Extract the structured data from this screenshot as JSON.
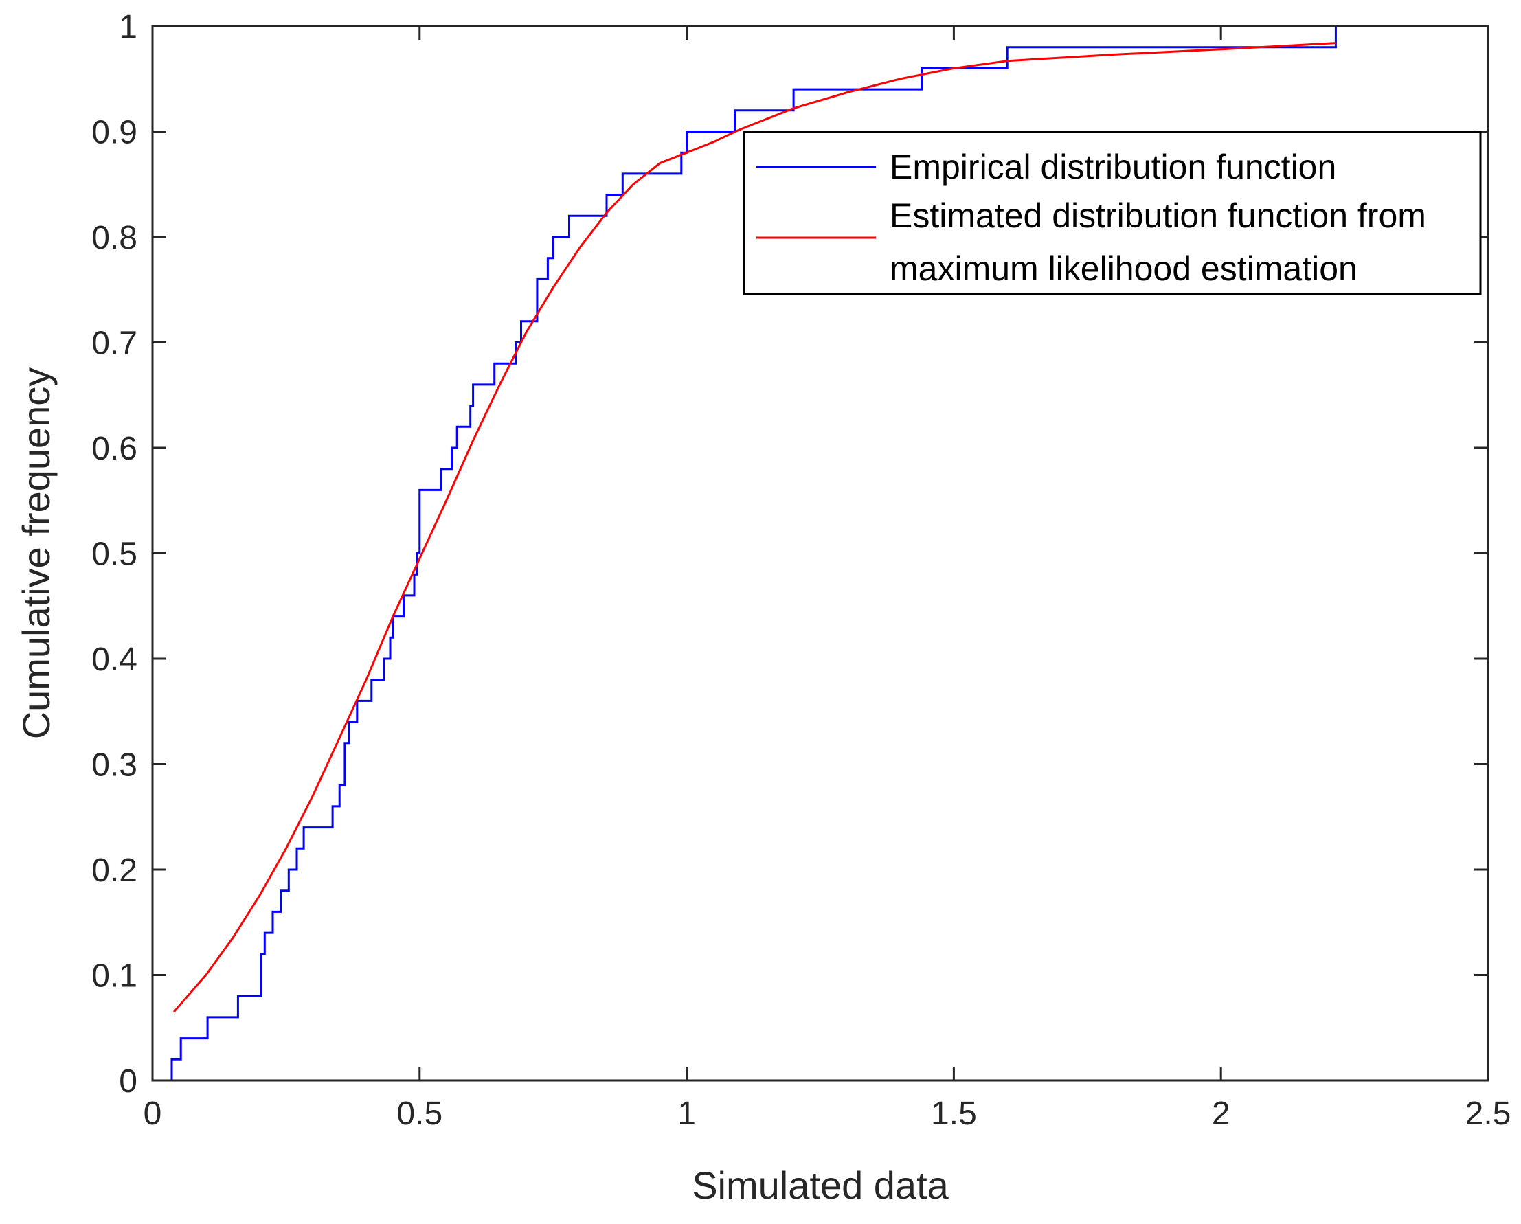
{
  "colors": {
    "empirical": "#0000ff",
    "fitted": "#ff0000",
    "axis": "#262626",
    "legend_border": "#000000"
  },
  "chart_data": {
    "type": "line",
    "title": "",
    "xlabel": "Simulated data",
    "ylabel": "Cumulative frequency",
    "xlim": [
      0,
      2.5
    ],
    "ylim": [
      0,
      1
    ],
    "xticks": [
      0,
      0.5,
      1,
      1.5,
      2,
      2.5
    ],
    "xtick_labels": [
      "0",
      "0.5",
      "1",
      "1.5",
      "2",
      "2.5"
    ],
    "yticks": [
      0,
      0.1,
      0.2,
      0.3,
      0.4,
      0.5,
      0.6,
      0.7,
      0.8,
      0.9,
      1
    ],
    "ytick_labels": [
      "0",
      "0.1",
      "0.2",
      "0.3",
      "0.4",
      "0.5",
      "0.6",
      "0.7",
      "0.8",
      "0.9",
      "1"
    ],
    "grid": false,
    "box": true,
    "legend": {
      "position": "top-right",
      "entries": [
        {
          "series": "empirical",
          "lines": [
            "Empirical distribution function"
          ]
        },
        {
          "series": "fitted",
          "lines": [
            "Estimated distribution function from",
            "maximum likelihood estimation"
          ]
        }
      ]
    },
    "series": [
      {
        "name": "Empirical distribution function",
        "id": "empirical",
        "style": "stairs",
        "x": [
          0.036,
          0.053,
          0.103,
          0.16,
          0.203,
          0.21,
          0.225,
          0.24,
          0.255,
          0.27,
          0.283,
          0.337,
          0.35,
          0.36,
          0.368,
          0.383,
          0.41,
          0.433,
          0.445,
          0.45,
          0.47,
          0.49,
          0.495,
          0.5,
          0.54,
          0.56,
          0.57,
          0.595,
          0.6,
          0.64,
          0.68,
          0.69,
          0.72,
          0.74,
          0.75,
          0.78,
          0.85,
          0.88,
          0.99,
          1.0,
          1.09,
          1.2,
          1.44,
          1.6,
          2.215
        ],
        "y": [
          0.02,
          0.04,
          0.06,
          0.08,
          0.12,
          0.14,
          0.16,
          0.18,
          0.2,
          0.22,
          0.24,
          0.26,
          0.28,
          0.32,
          0.34,
          0.36,
          0.38,
          0.4,
          0.42,
          0.44,
          0.46,
          0.48,
          0.5,
          0.56,
          0.58,
          0.6,
          0.62,
          0.64,
          0.66,
          0.68,
          0.7,
          0.72,
          0.76,
          0.78,
          0.8,
          0.82,
          0.84,
          0.86,
          0.88,
          0.9,
          0.92,
          0.94,
          0.96,
          0.98,
          1.0
        ]
      },
      {
        "name": "Estimated distribution function from maximum likelihood estimation",
        "id": "fitted",
        "style": "line",
        "x": [
          0.04,
          0.1,
          0.15,
          0.2,
          0.25,
          0.3,
          0.35,
          0.4,
          0.45,
          0.5,
          0.55,
          0.6,
          0.65,
          0.7,
          0.75,
          0.8,
          0.85,
          0.9,
          0.95,
          1.0,
          1.05,
          1.1,
          1.2,
          1.3,
          1.4,
          1.5,
          1.6,
          1.8,
          2.0,
          2.215
        ],
        "y": [
          0.065,
          0.1,
          0.135,
          0.175,
          0.22,
          0.27,
          0.325,
          0.38,
          0.44,
          0.495,
          0.55,
          0.607,
          0.66,
          0.71,
          0.752,
          0.79,
          0.823,
          0.85,
          0.87,
          0.88,
          0.89,
          0.902,
          0.922,
          0.937,
          0.95,
          0.96,
          0.967,
          0.973,
          0.978,
          0.984
        ]
      }
    ]
  }
}
